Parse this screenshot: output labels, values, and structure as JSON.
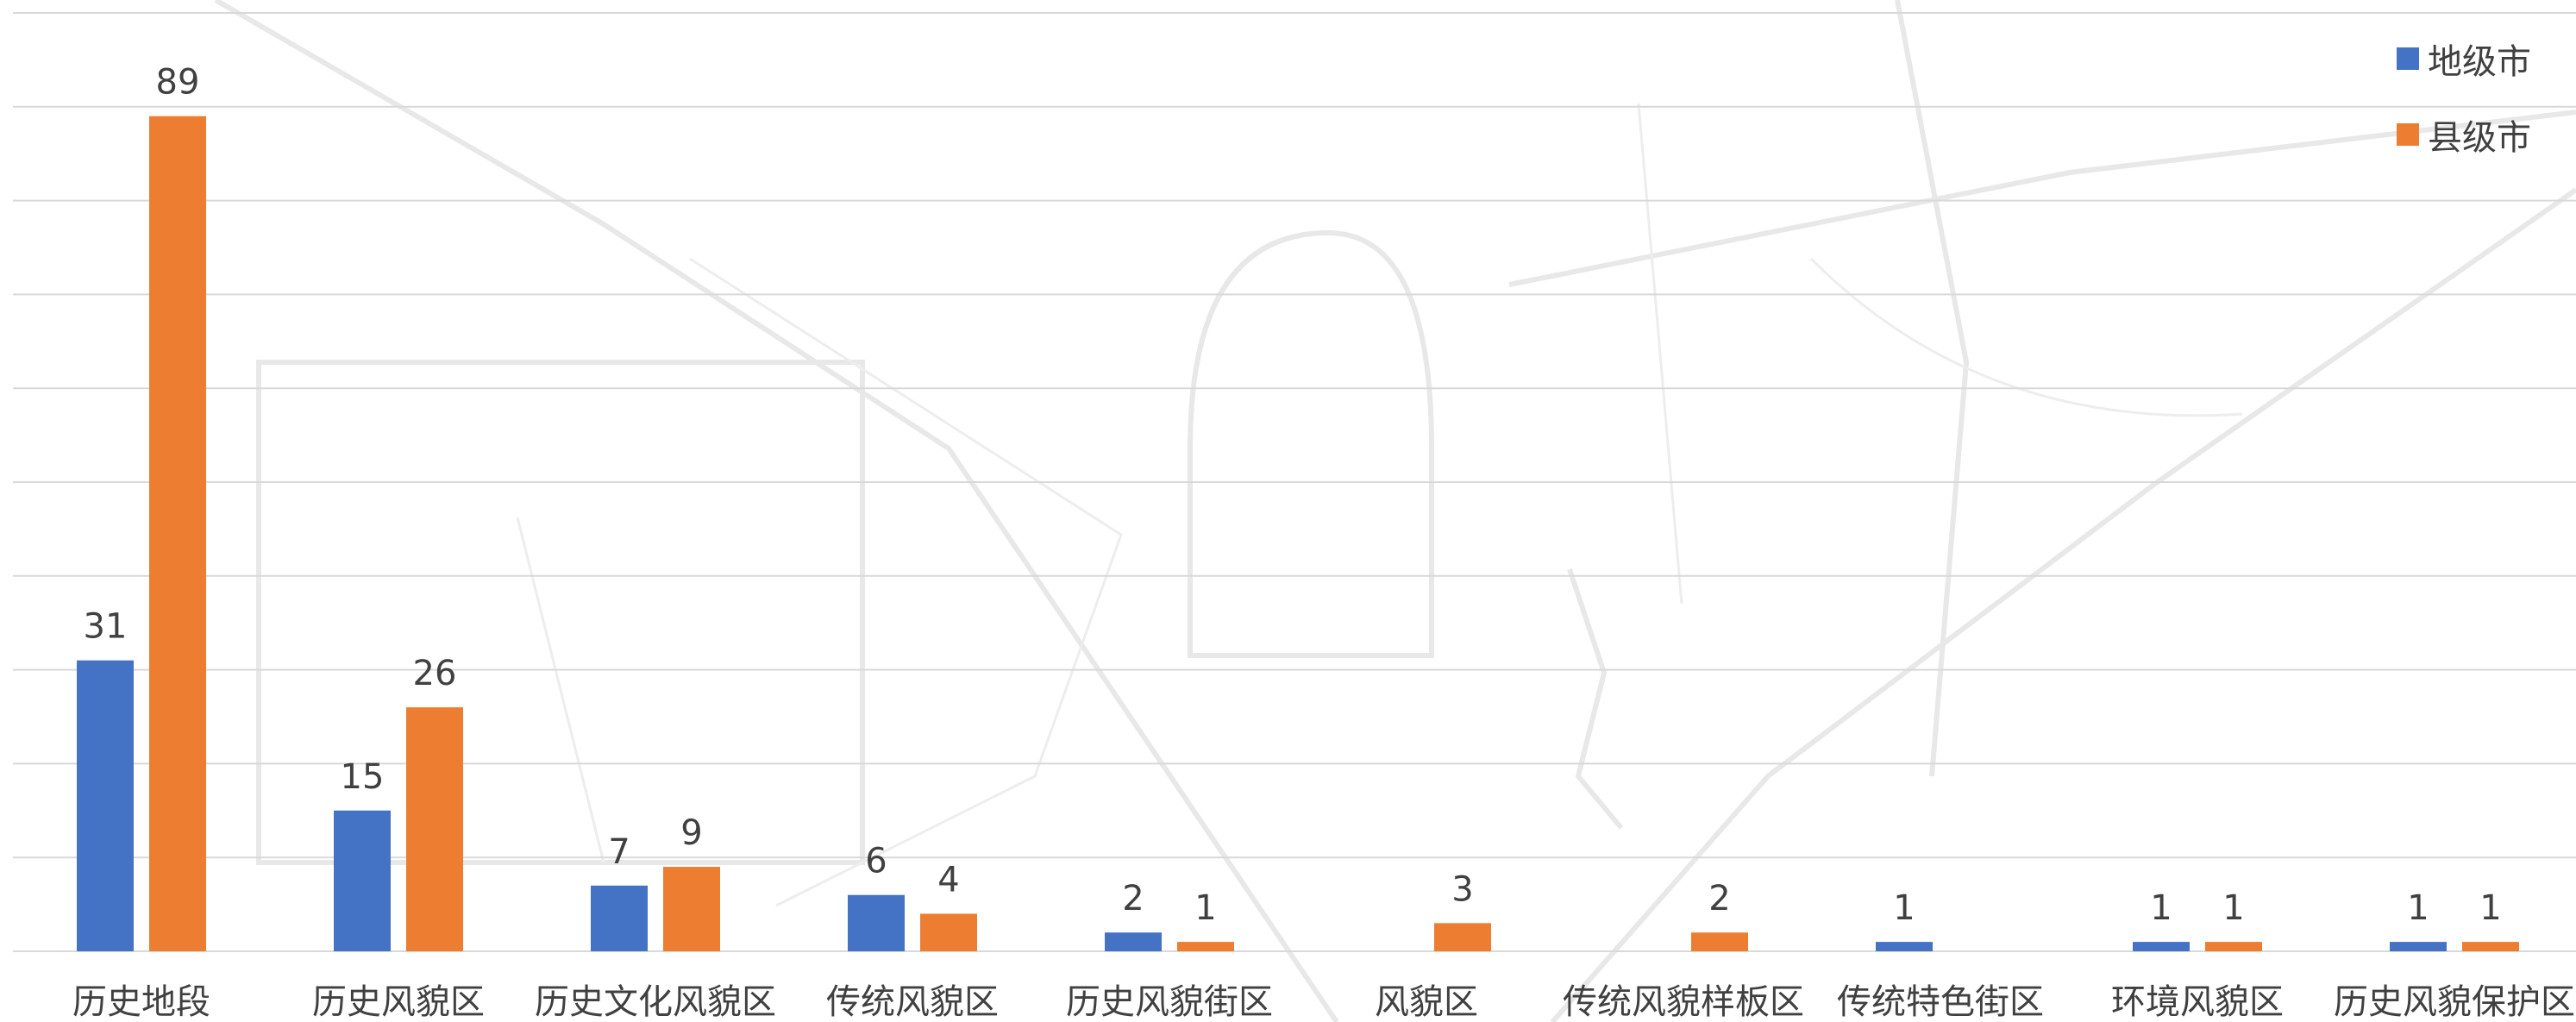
{
  "chart_data": {
    "type": "bar",
    "title": "",
    "xlabel": "",
    "ylabel": "",
    "ylim": [
      0,
      100
    ],
    "grid": true,
    "legend_position": "top-right",
    "categories": [
      "历史地段",
      "历史风貌区",
      "历史文化风貌区",
      "传统风貌区",
      "历史风貌街区",
      "风貌区",
      "传统风貌样板区",
      "传统特色街区",
      "环境风貌区",
      "历史风貌保护区"
    ],
    "series": [
      {
        "name": "地级市",
        "color": "#4472C4",
        "values": [
          31,
          15,
          7,
          6,
          2,
          null,
          null,
          1,
          1,
          1
        ],
        "labels": [
          "31",
          "15",
          "7",
          "6",
          "2",
          "",
          "",
          "1",
          "1",
          "1"
        ]
      },
      {
        "name": "县级市",
        "color": "#ED7D31",
        "values": [
          89,
          26,
          9,
          4,
          1,
          3,
          2,
          null,
          1,
          1
        ],
        "labels": [
          "89",
          "26",
          "9",
          "4",
          "1",
          "3",
          "2",
          "",
          "1",
          "1"
        ]
      }
    ]
  }
}
